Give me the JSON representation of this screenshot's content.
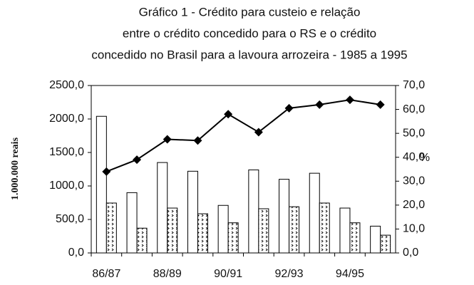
{
  "chart_data": {
    "type": "bar",
    "title": [
      "Gráfico 1 - Crédito para custeio e relação",
      "entre o crédito concedido  para o RS  e o crédito",
      "concedido  no  Brasil para a lavoura arrozeira - 1985 a 1995"
    ],
    "y_label": "1.000.000 reais",
    "y2_label": "%",
    "categories": [
      "86/87",
      null,
      "88/89",
      null,
      "90/91",
      null,
      "92/93",
      null,
      "94/95",
      null
    ],
    "series": [
      {
        "type": "bar",
        "color": "#ffffff",
        "values": [
          2040,
          900,
          1350,
          1220,
          710,
          1240,
          1100,
          1190,
          670,
          400
        ]
      },
      {
        "type": "bar",
        "color": "#000000",
        "values": [
          745,
          370,
          670,
          585,
          450,
          660,
          690,
          745,
          450,
          265
        ]
      },
      {
        "type": "line",
        "axis": "y2",
        "color": "#000000",
        "values": [
          34,
          39,
          47.5,
          47,
          58,
          50.5,
          60.5,
          62,
          64,
          62
        ]
      }
    ],
    "ylim": [
      0,
      2500
    ],
    "yticks": [
      {
        "value": 0,
        "label": "0,0"
      },
      {
        "value": 500,
        "label": "500,0"
      },
      {
        "value": 1000,
        "label": "1000,0"
      },
      {
        "value": 1500,
        "label": "1500,0"
      },
      {
        "value": 2000,
        "label": "2000,0"
      },
      {
        "value": 2500,
        "label": "2500,0"
      }
    ],
    "y2lim": [
      0,
      70
    ],
    "y2ticks": [
      {
        "value": 0,
        "label": "0,0"
      },
      {
        "value": 10,
        "label": "10,0"
      },
      {
        "value": 20,
        "label": "20,0"
      },
      {
        "value": 30,
        "label": "30,0"
      },
      {
        "value": 40,
        "label": "40,0"
      },
      {
        "value": 50,
        "label": "50,0"
      },
      {
        "value": 60,
        "label": "60,0"
      },
      {
        "value": 70,
        "label": "70,0"
      }
    ],
    "grid": false
  }
}
